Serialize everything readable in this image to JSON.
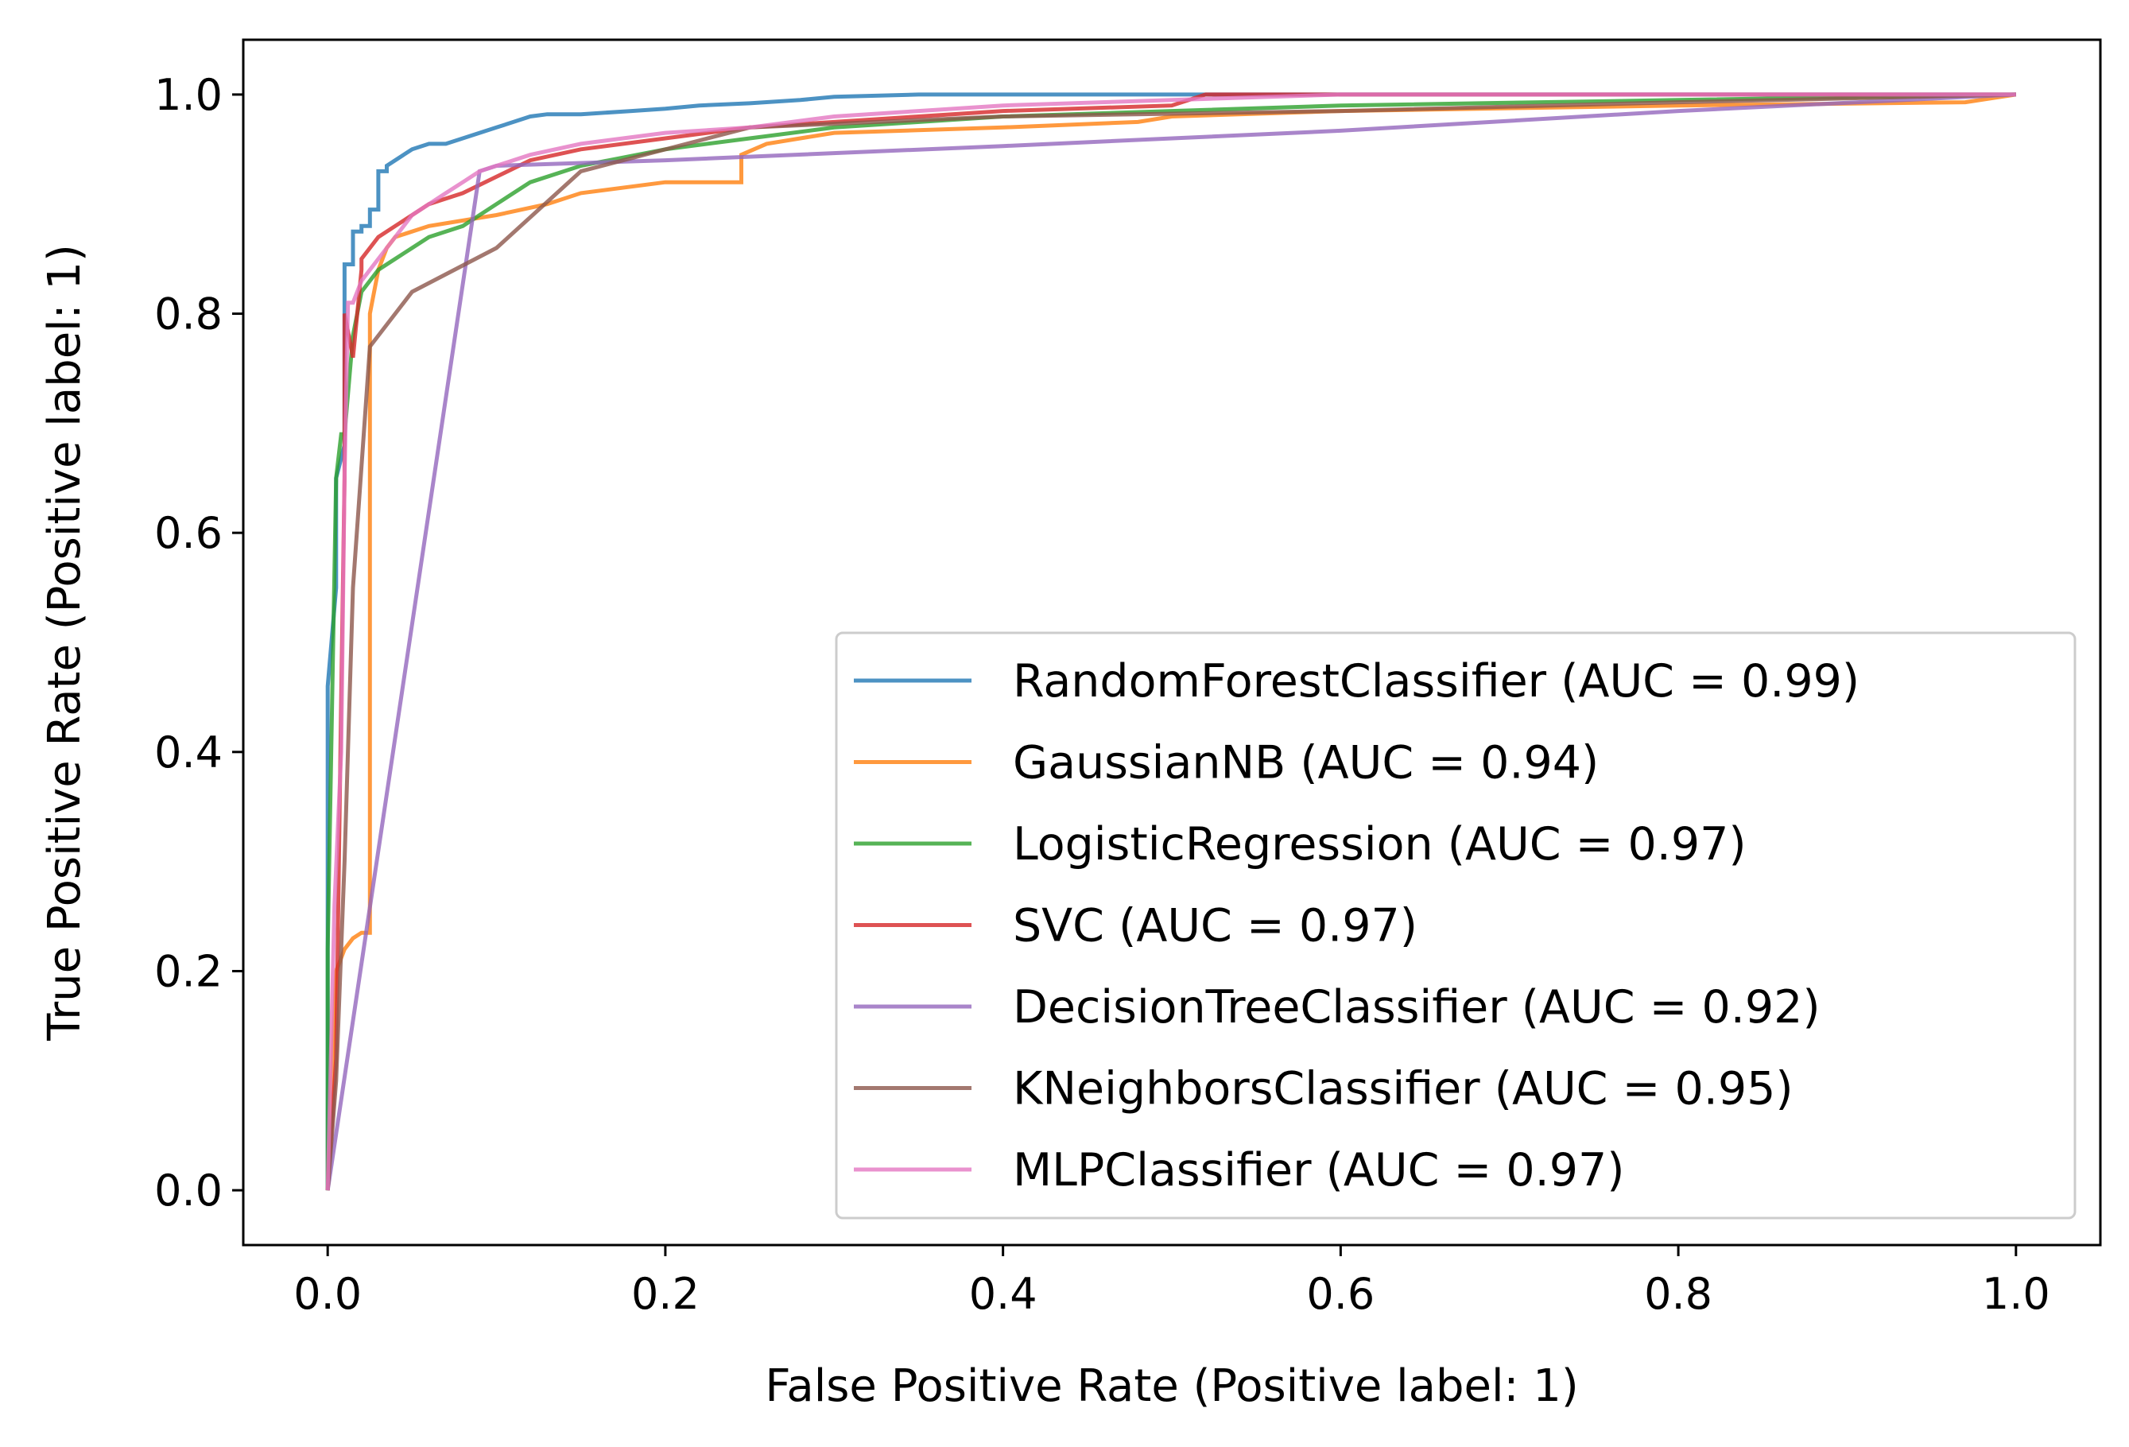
{
  "chart_data": {
    "type": "line",
    "title": "",
    "xlabel": "False Positive Rate (Positive label: 1)",
    "ylabel": "True Positive Rate (Positive label: 1)",
    "xlim": [
      -0.05,
      1.05
    ],
    "ylim": [
      -0.05,
      1.05
    ],
    "xticks": [
      0.0,
      0.2,
      0.4,
      0.6,
      0.8,
      1.0
    ],
    "yticks": [
      0.0,
      0.2,
      0.4,
      0.6,
      0.8,
      1.0
    ],
    "xtick_labels": [
      "0.0",
      "0.2",
      "0.4",
      "0.6",
      "0.8",
      "1.0"
    ],
    "ytick_labels": [
      "0.0",
      "0.2",
      "0.4",
      "0.6",
      "0.8",
      "1.0"
    ],
    "grid": false,
    "legend_position": "lower-right",
    "series": [
      {
        "name": "RandomForestClassifier (AUC = 0.99)",
        "color": "#1f77b4",
        "x": [
          0,
          0,
          0.005,
          0.005,
          0.01,
          0.01,
          0.015,
          0.015,
          0.02,
          0.02,
          0.025,
          0.025,
          0.03,
          0.03,
          0.035,
          0.035,
          0.04,
          0.045,
          0.05,
          0.06,
          0.07,
          0.08,
          0.09,
          0.1,
          0.11,
          0.12,
          0.13,
          0.15,
          0.18,
          0.2,
          0.22,
          0.25,
          0.28,
          0.3,
          0.35,
          0.42,
          0.6,
          1.0
        ],
        "y": [
          0,
          0.46,
          0.55,
          0.65,
          0.68,
          0.845,
          0.845,
          0.875,
          0.875,
          0.88,
          0.88,
          0.895,
          0.895,
          0.93,
          0.93,
          0.935,
          0.94,
          0.945,
          0.95,
          0.955,
          0.955,
          0.96,
          0.965,
          0.97,
          0.975,
          0.98,
          0.982,
          0.982,
          0.985,
          0.987,
          0.99,
          0.992,
          0.995,
          0.998,
          1.0,
          1.0,
          1.0,
          1.0
        ]
      },
      {
        "name": "GaussianNB (AUC = 0.94)",
        "color": "#ff7f0e",
        "x": [
          0,
          0.005,
          0.01,
          0.015,
          0.02,
          0.025,
          0.025,
          0.03,
          0.035,
          0.04,
          0.06,
          0.08,
          0.1,
          0.13,
          0.15,
          0.2,
          0.245,
          0.245,
          0.26,
          0.3,
          0.4,
          0.48,
          0.5,
          0.6,
          0.8,
          0.97,
          1.0
        ],
        "y": [
          0,
          0.2,
          0.22,
          0.23,
          0.235,
          0.235,
          0.8,
          0.84,
          0.86,
          0.87,
          0.88,
          0.885,
          0.89,
          0.9,
          0.91,
          0.92,
          0.92,
          0.945,
          0.955,
          0.965,
          0.97,
          0.975,
          0.98,
          0.985,
          0.99,
          0.993,
          1.0
        ]
      },
      {
        "name": "LogisticRegression (AUC = 0.97)",
        "color": "#2ca02c",
        "x": [
          0,
          0,
          0.005,
          0.008,
          0.01,
          0.015,
          0.02,
          0.03,
          0.04,
          0.05,
          0.06,
          0.08,
          0.1,
          0.12,
          0.15,
          0.2,
          0.25,
          0.3,
          0.4,
          0.5,
          0.6,
          0.8,
          1.0
        ],
        "y": [
          0,
          0.22,
          0.65,
          0.69,
          0.69,
          0.78,
          0.82,
          0.84,
          0.85,
          0.86,
          0.87,
          0.88,
          0.9,
          0.92,
          0.935,
          0.95,
          0.96,
          0.97,
          0.98,
          0.985,
          0.99,
          0.995,
          1.0
        ]
      },
      {
        "name": "SVC (AUC = 0.97)",
        "color": "#d62728",
        "x": [
          0,
          0.005,
          0.008,
          0.01,
          0.01,
          0.015,
          0.02,
          0.02,
          0.025,
          0.03,
          0.04,
          0.05,
          0.06,
          0.08,
          0.1,
          0.12,
          0.15,
          0.2,
          0.25,
          0.3,
          0.35,
          0.4,
          0.5,
          0.52,
          0.6,
          1.0
        ],
        "y": [
          0,
          0.12,
          0.45,
          0.65,
          0.8,
          0.76,
          0.84,
          0.85,
          0.86,
          0.87,
          0.88,
          0.89,
          0.9,
          0.91,
          0.925,
          0.94,
          0.95,
          0.96,
          0.97,
          0.975,
          0.98,
          0.985,
          0.99,
          1.0,
          1.0,
          1.0
        ]
      },
      {
        "name": "DecisionTreeClassifier (AUC = 0.92)",
        "color": "#9467bd",
        "x": [
          0,
          0.09,
          0.1,
          0.2,
          0.4,
          0.6,
          0.8,
          1.0
        ],
        "y": [
          0,
          0.93,
          0.935,
          0.94,
          0.953,
          0.967,
          0.985,
          1.0
        ]
      },
      {
        "name": "KNeighborsClassifier (AUC = 0.95)",
        "color": "#8c564b",
        "x": [
          0,
          0.005,
          0.01,
          0.015,
          0.025,
          0.05,
          0.1,
          0.15,
          0.25,
          0.4,
          0.6,
          0.8,
          1.0
        ],
        "y": [
          0,
          0.1,
          0.3,
          0.55,
          0.77,
          0.82,
          0.86,
          0.93,
          0.97,
          0.98,
          0.985,
          0.993,
          1.0
        ]
      },
      {
        "name": "MLPClassifier (AUC = 0.97)",
        "color": "#e377c2",
        "x": [
          0,
          0.004,
          0.008,
          0.01,
          0.012,
          0.015,
          0.02,
          0.025,
          0.03,
          0.04,
          0.05,
          0.06,
          0.07,
          0.08,
          0.09,
          0.1,
          0.12,
          0.15,
          0.2,
          0.25,
          0.3,
          0.35,
          0.4,
          0.6,
          0.8,
          1.0
        ],
        "y": [
          0,
          0.26,
          0.4,
          0.65,
          0.81,
          0.81,
          0.83,
          0.84,
          0.85,
          0.87,
          0.89,
          0.9,
          0.91,
          0.92,
          0.93,
          0.935,
          0.945,
          0.955,
          0.965,
          0.97,
          0.98,
          0.985,
          0.99,
          1.0,
          1.0,
          1.0
        ]
      }
    ]
  }
}
